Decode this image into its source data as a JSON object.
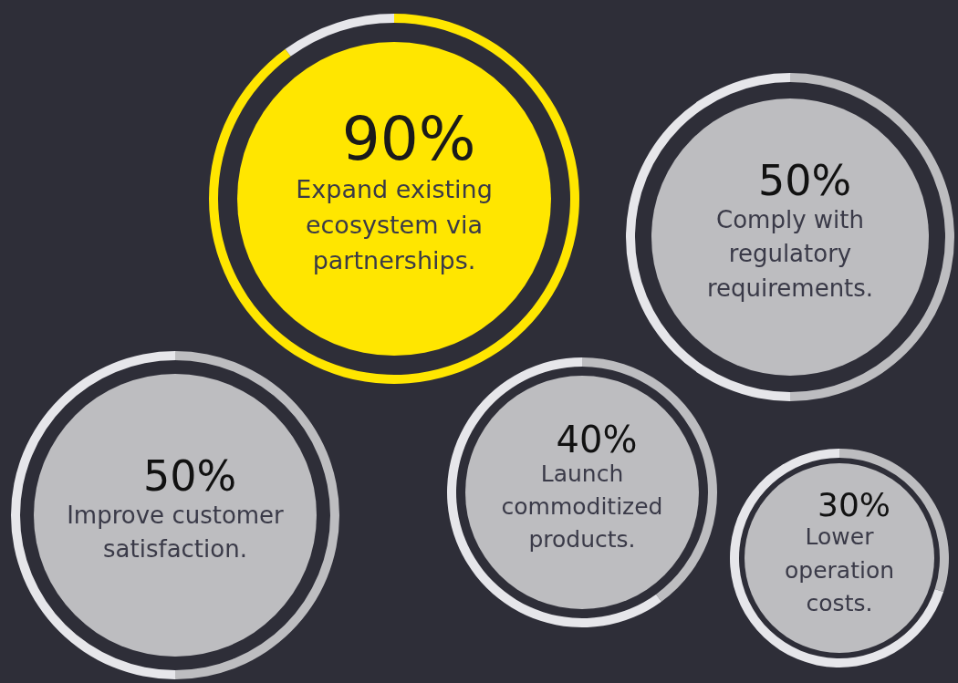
{
  "chart_data": [
    {
      "type": "donut",
      "categories": [
        "Expand existing ecosystem via partnerships.",
        null
      ],
      "values": [
        90,
        10
      ],
      "colors": [
        "#ffe600",
        "#e6e6ea"
      ],
      "value_labels": [
        "90%",
        null
      ]
    },
    {
      "type": "donut",
      "categories": [
        "Comply with regulatory requirements.",
        null
      ],
      "values": [
        50,
        50
      ],
      "colors": [
        "#bdbdc0",
        "#e6e6ea"
      ],
      "value_labels": [
        "50%",
        null
      ]
    },
    {
      "type": "donut",
      "categories": [
        "Improve customer satisfaction.",
        null
      ],
      "values": [
        50,
        50
      ],
      "colors": [
        "#bdbdc0",
        "#e6e6ea"
      ],
      "value_labels": [
        "50%",
        null
      ]
    },
    {
      "type": "donut",
      "categories": [
        "Launch commoditized products.",
        null
      ],
      "values": [
        40,
        60
      ],
      "colors": [
        "#bdbdc0",
        "#e6e6ea"
      ],
      "value_labels": [
        "40%",
        null
      ]
    },
    {
      "type": "donut",
      "categories": [
        "Lower operation costs.",
        null
      ],
      "values": [
        30,
        70
      ],
      "colors": [
        "#bdbdc0",
        "#e6e6ea"
      ],
      "value_labels": [
        "30%",
        null
      ]
    }
  ]
}
